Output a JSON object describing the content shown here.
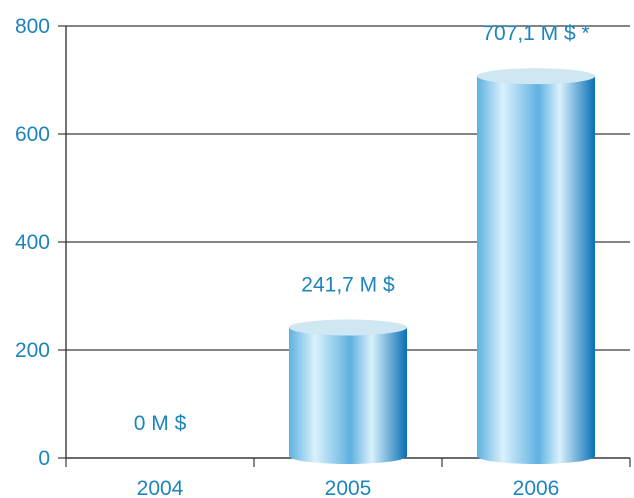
{
  "chart_data": {
    "type": "bar",
    "style": "cylinder",
    "title": "",
    "xlabel": "",
    "ylabel": "",
    "categories": [
      "2004",
      "2005",
      "2006"
    ],
    "values": [
      0,
      241.7,
      707.1
    ],
    "data_labels": [
      "0 M $",
      "241,7 M $",
      "707,1 M $ *"
    ],
    "ylim": [
      0,
      800
    ],
    "yticks": [
      0,
      200,
      400,
      600,
      800
    ],
    "ytick_labels": [
      "0",
      "200",
      "400",
      "600",
      "800"
    ],
    "grid": true,
    "legend": "none",
    "colors": {
      "text": "#1d84be",
      "grid": "#3a3a3a",
      "bar_light": "#d9f1fc",
      "bar_mid": "#5fb0e0",
      "bar_dark": "#0a6fb6",
      "bar_top": "#cfe6f3"
    }
  }
}
